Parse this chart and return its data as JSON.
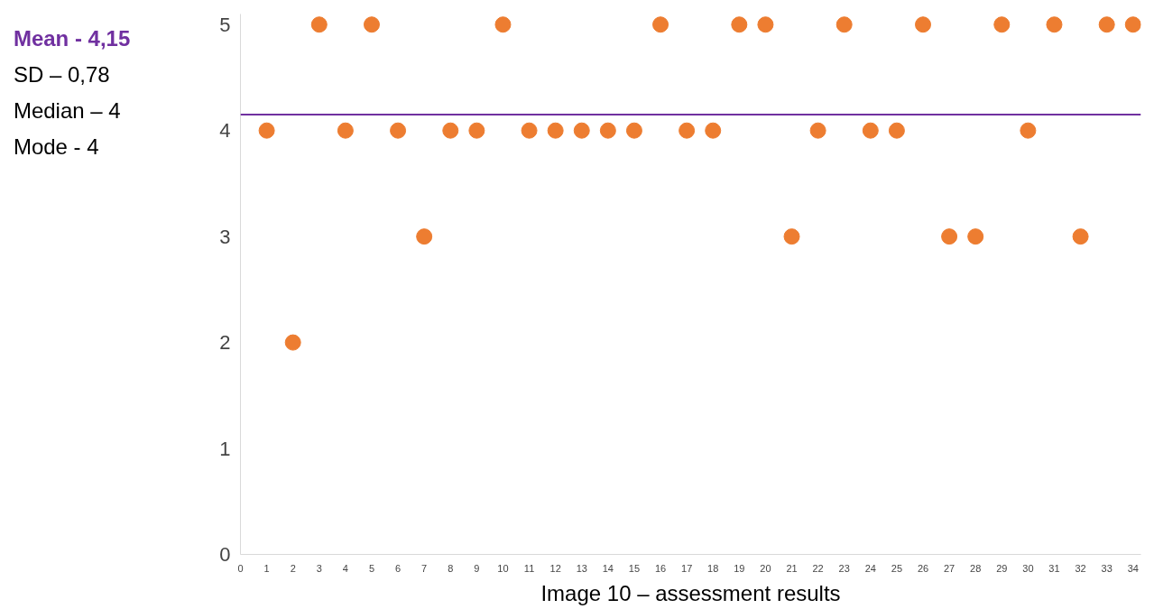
{
  "chart_data": {
    "type": "scatter",
    "x": [
      1,
      2,
      3,
      4,
      5,
      6,
      7,
      8,
      9,
      10,
      11,
      12,
      13,
      14,
      15,
      16,
      17,
      18,
      19,
      20,
      21,
      22,
      23,
      24,
      25,
      26,
      27,
      28,
      29,
      30,
      31,
      32,
      33,
      34
    ],
    "series": [
      {
        "color": "#ed7d31",
        "values": [
          4,
          2,
          5,
          4,
          5,
          4,
          3,
          4,
          4,
          5,
          4,
          4,
          4,
          4,
          4,
          5,
          4,
          4,
          5,
          5,
          3,
          4,
          5,
          4,
          4,
          5,
          3,
          3,
          5,
          4,
          5,
          3,
          5,
          5
        ]
      }
    ],
    "marker": "circle",
    "xlim": [
      0,
      34.3
    ],
    "xticks": [
      0,
      1,
      2,
      3,
      4,
      5,
      6,
      7,
      8,
      9,
      10,
      11,
      12,
      13,
      14,
      15,
      16,
      17,
      18,
      19,
      20,
      21,
      22,
      23,
      24,
      25,
      26,
      27,
      28,
      29,
      30,
      31,
      32,
      33,
      34
    ],
    "ylim": [
      0,
      5.1
    ],
    "yticks": [
      0,
      1,
      2,
      3,
      4,
      5
    ],
    "grid": false,
    "ref_lines": [
      {
        "axis": "y",
        "value": 4.15,
        "label": "Mean - 4,15",
        "color": "#7030a0"
      }
    ],
    "annotations": [
      "SD – 0,78",
      "Median – 4",
      "Mode - 4",
      "Image 10 – assessment results"
    ]
  }
}
